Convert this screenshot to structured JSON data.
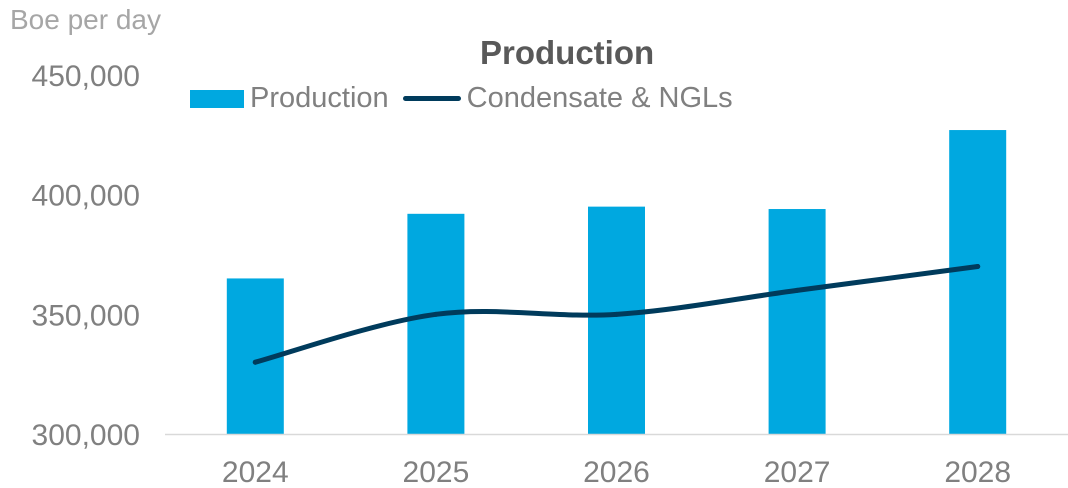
{
  "colors": {
    "bar": "#00a8e0",
    "line": "#003b5c",
    "axis_text": "#808080",
    "axis_line": "#d9d9d9",
    "title": "#595959"
  },
  "chart_data": {
    "type": "bar",
    "title": "Production",
    "ylabel": "Boe per day",
    "xlabel": "",
    "categories": [
      "2024",
      "2025",
      "2026",
      "2027",
      "2028"
    ],
    "series": [
      {
        "name": "Production",
        "type": "bar",
        "values": [
          365000,
          392000,
          395000,
          394000,
          427000
        ]
      },
      {
        "name": "Condensate & NGLs",
        "type": "line",
        "values": [
          330000,
          350000,
          350000,
          360000,
          370000
        ]
      }
    ],
    "ylim": [
      300000,
      450000
    ],
    "yticks": [
      "300,000",
      "350,000",
      "400,000",
      "450,000"
    ],
    "grid": false,
    "legend_position": "top"
  }
}
